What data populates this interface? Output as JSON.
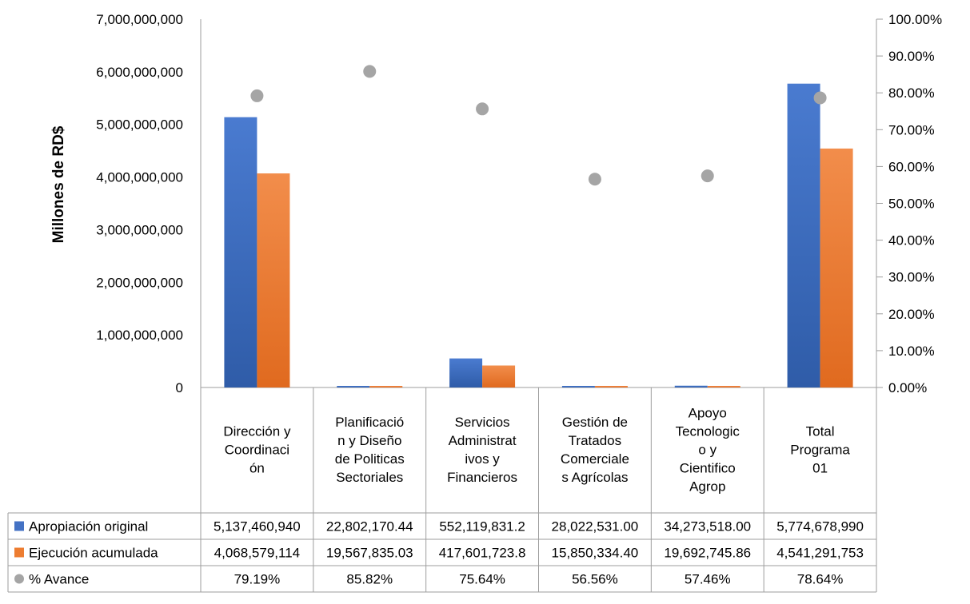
{
  "chart_data": {
    "type": "bar",
    "ylabel": "Millones de RD$",
    "categories": [
      [
        "Dirección y",
        "Coordinaci",
        "ón"
      ],
      [
        "Planificació",
        "n y Diseño",
        "de Politicas",
        "Sectoriales"
      ],
      [
        "Servicios",
        "Administrat",
        "ivos y",
        "Financieros"
      ],
      [
        "Gestión  de",
        "Tratados",
        "Comerciale",
        "s Agrícolas"
      ],
      [
        "Apoyo",
        "Tecnologic",
        "o y",
        "Cientifico",
        "Agrop"
      ],
      [
        "Total",
        "Programa",
        "01"
      ]
    ],
    "primary_axis": {
      "min": 0,
      "max": 7000000000,
      "ticks": [
        0,
        1000000000,
        2000000000,
        3000000000,
        4000000000,
        5000000000,
        6000000000,
        7000000000
      ],
      "tick_labels": [
        "0",
        "1,000,000,000",
        "2,000,000,000",
        "3,000,000,000",
        "4,000,000,000",
        "5,000,000,000",
        "6,000,000,000",
        "7,000,000,000"
      ]
    },
    "secondary_axis": {
      "min": 0,
      "max": 1,
      "ticks": [
        0,
        0.1,
        0.2,
        0.3,
        0.4,
        0.5,
        0.6,
        0.7,
        0.8,
        0.9,
        1.0
      ],
      "tick_labels": [
        "0.00%",
        "10.00%",
        "20.00%",
        "30.00%",
        "40.00%",
        "50.00%",
        "60.00%",
        "70.00%",
        "80.00%",
        "90.00%",
        "100.00%"
      ]
    },
    "series": [
      {
        "name": "Apropiación original",
        "kind": "bar",
        "color": "#4472C4",
        "values": [
          5137460940,
          22802170.44,
          552119831.2,
          28022531.0,
          34273518.0,
          5774678990
        ],
        "labels": [
          "5,137,460,940",
          "22,802,170.44",
          "552,119,831.2",
          "28,022,531.00",
          "34,273,518.00",
          "5,774,678,990"
        ]
      },
      {
        "name": "Ejecución acumulada",
        "kind": "bar",
        "color": "#ED7D31",
        "values": [
          4068579114,
          19567835.03,
          417601723.8,
          15850334.4,
          19692745.86,
          4541291753
        ],
        "labels": [
          "4,068,579,114",
          "19,567,835.03",
          "417,601,723.8",
          "15,850,334.40",
          "19,692,745.86",
          "4,541,291,753"
        ]
      },
      {
        "name": "% Avance",
        "kind": "scatter",
        "axis": "secondary",
        "color": "#A5A5A5",
        "values": [
          0.7919,
          0.8582,
          0.7564,
          0.5656,
          0.5746,
          0.7864
        ],
        "labels": [
          "79.19%",
          "85.82%",
          "75.64%",
          "56.56%",
          "57.46%",
          "78.64%"
        ]
      }
    ],
    "grid": false,
    "legend": "data-table"
  }
}
